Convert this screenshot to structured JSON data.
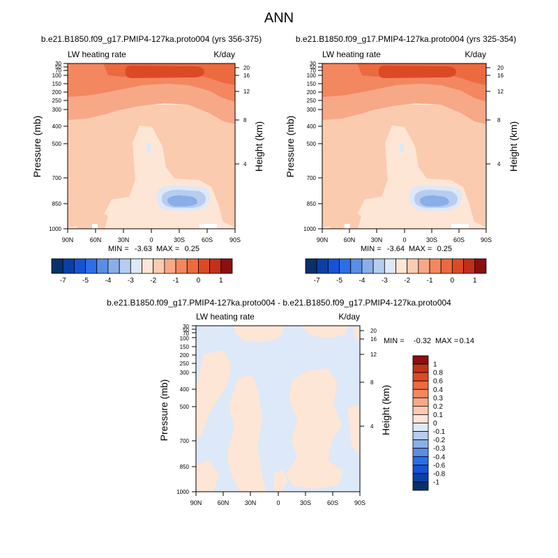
{
  "figure": {
    "title": "ANN"
  },
  "chart_data": [
    {
      "type": "heatmap",
      "title": "b.e21.B1850.f09_g17.PMIP4-127ka.proto004 (yrs 356-375)",
      "left_label": "LW heating rate",
      "right_label": "K/day",
      "xlabel": "",
      "ylabel": "Pressure (mb)",
      "ylabel_right": "Height (km)",
      "x_ticks": [
        "90N",
        "60N",
        "30N",
        "0",
        "30S",
        "60S",
        "90S"
      ],
      "y_ticks": [
        "30",
        "50",
        "70",
        "100",
        "150",
        "200",
        "250",
        "300",
        "400",
        "500",
        "700",
        "850",
        "1000"
      ],
      "y_ticks_right": [
        "20",
        "16",
        "12",
        "8",
        "4"
      ],
      "min_label": "MIN =",
      "min": "-3.63",
      "max_label": "MAX =",
      "max": "0.25",
      "colorbar": {
        "orientation": "horizontal",
        "labels": [
          "-7",
          "-5",
          "-4",
          "-3",
          "-2",
          "-1",
          "0",
          "1"
        ],
        "colors": [
          "#08306b",
          "#0b3fa6",
          "#1552d6",
          "#2c6ee6",
          "#5a8de6",
          "#8aaee8",
          "#b6cdf0",
          "#dde8f8",
          "#fde6d6",
          "#fbcbb0",
          "#f7a887",
          "#f3875f",
          "#ec6a3f",
          "#dc4a25",
          "#c2301a",
          "#8b0f0f"
        ]
      }
    },
    {
      "type": "heatmap",
      "title": "b.e21.B1850.f09_g17.PMIP4-127ka.proto004 (yrs 325-354)",
      "left_label": "LW heating rate",
      "right_label": "K/day",
      "xlabel": "",
      "ylabel": "Pressure (mb)",
      "ylabel_right": "Height (km)",
      "x_ticks": [
        "90N",
        "60N",
        "30N",
        "0",
        "30S",
        "60S",
        "90S"
      ],
      "y_ticks": [
        "30",
        "50",
        "70",
        "100",
        "150",
        "200",
        "250",
        "300",
        "400",
        "500",
        "700",
        "850",
        "1000"
      ],
      "y_ticks_right": [
        "20",
        "16",
        "12",
        "8",
        "4"
      ],
      "min_label": "MIN =",
      "min": "-3.64",
      "max_label": "MAX =",
      "max": "0.25",
      "colorbar": {
        "orientation": "horizontal",
        "labels": [
          "-7",
          "-5",
          "-4",
          "-3",
          "-2",
          "-1",
          "0",
          "1"
        ],
        "colors": [
          "#08306b",
          "#0b3fa6",
          "#1552d6",
          "#2c6ee6",
          "#5a8de6",
          "#8aaee8",
          "#b6cdf0",
          "#dde8f8",
          "#fde6d6",
          "#fbcbb0",
          "#f7a887",
          "#f3875f",
          "#ec6a3f",
          "#dc4a25",
          "#c2301a",
          "#8b0f0f"
        ]
      }
    },
    {
      "type": "heatmap",
      "title": "b.e21.B1850.f09_g17.PMIP4-127ka.proto004 - b.e21.B1850.f09_g17.PMIP4-127ka.proto004",
      "left_label": "LW heating rate",
      "right_label": "K/day",
      "xlabel": "",
      "ylabel": "Pressure (mb)",
      "ylabel_right": "Height (km)",
      "x_ticks": [
        "90N",
        "60N",
        "30N",
        "0",
        "30S",
        "60S",
        "90S"
      ],
      "y_ticks": [
        "30",
        "50",
        "70",
        "100",
        "150",
        "200",
        "250",
        "300",
        "400",
        "500",
        "700",
        "850",
        "1000"
      ],
      "y_ticks_right": [
        "20",
        "16",
        "12",
        "8",
        "4"
      ],
      "min_label": "MIN =",
      "min": "-0.32",
      "max_label": "MAX =",
      "max": "0.14",
      "colorbar": {
        "orientation": "vertical",
        "labels": [
          "1",
          "0.8",
          "0.6",
          "0.4",
          "0.3",
          "0.2",
          "0.1",
          "0",
          "-0.1",
          "-0.2",
          "-0.3",
          "-0.4",
          "-0.6",
          "-0.8",
          "-1"
        ],
        "colors": [
          "#8b0f0f",
          "#c2301a",
          "#dc4a25",
          "#ec6a3f",
          "#f3875f",
          "#f7a887",
          "#fbcbb0",
          "#fde6d6",
          "#dde8f8",
          "#b6cdf0",
          "#8aaee8",
          "#5a8de6",
          "#2c6ee6",
          "#1552d6",
          "#0b3fa6",
          "#08306b"
        ]
      }
    }
  ]
}
